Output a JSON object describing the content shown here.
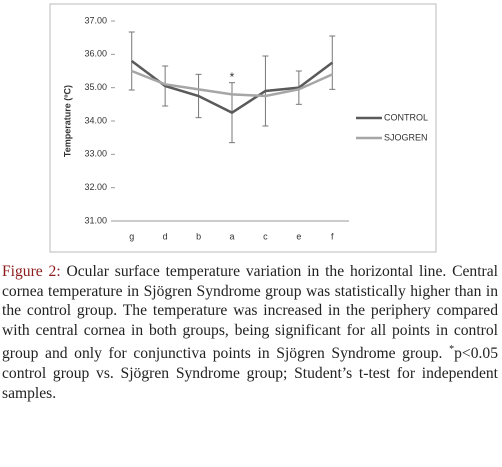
{
  "chart_data": {
    "type": "line",
    "y_label": "Temperature (ºC)",
    "categories": [
      "g",
      "d",
      "b",
      "a",
      "c",
      "e",
      "f"
    ],
    "series": [
      {
        "name": "CONTROL",
        "color": "#5a5a5a",
        "values": [
          35.8,
          35.05,
          34.75,
          34.25,
          34.9,
          35.0,
          35.75
        ],
        "errors": [
          0.87,
          0.6,
          0.65,
          0.9,
          1.05,
          0.5,
          0.8
        ]
      },
      {
        "name": "SJOGREN",
        "color": "#a6a6a6",
        "values": [
          35.5,
          35.1,
          34.95,
          34.8,
          34.75,
          34.95,
          35.4
        ]
      }
    ],
    "ylim": [
      31,
      37
    ],
    "yticks": [
      {
        "value": 31,
        "label": "31.00"
      },
      {
        "value": 32,
        "label": "32.00"
      },
      {
        "value": 33,
        "label": "33.00"
      },
      {
        "value": 34,
        "label": "34.00"
      },
      {
        "value": 35,
        "label": "35.00"
      },
      {
        "value": 36,
        "label": "36.00"
      },
      {
        "value": 37,
        "label": "37.00"
      }
    ],
    "grid": false,
    "legend": "right",
    "annotations": [
      {
        "text": "*",
        "category": "a",
        "y": 35.3
      }
    ]
  },
  "caption": {
    "label": "Figure 2:",
    "body": "Ocular surface temperature variation in the horizontal line. Central cornea temperature in Sjögren Syndrome group was statistically higher than in the control group. The temperature was increased in the periphery compared with central cornea in both groups, being significant for all points in control group and only for conjunctiva points in Sjögren Syndrome group. ",
    "superscript": "*",
    "body_end": "p<0.05 control group vs. Sjögren Syndrome group; Student’s t-test for independent samples."
  }
}
